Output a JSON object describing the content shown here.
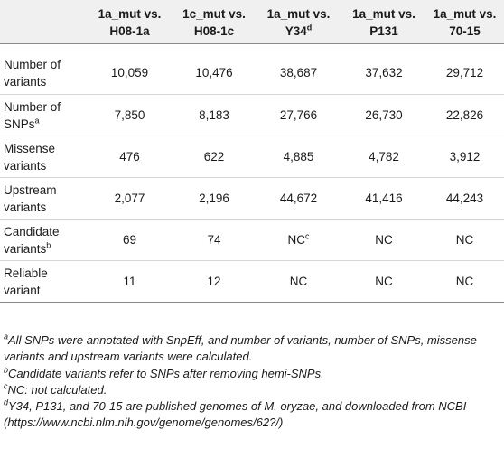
{
  "table": {
    "header": [
      {
        "line1": "",
        "line2": "",
        "sup": ""
      },
      {
        "line1": "1a_mut vs.",
        "line2": "H08-1a",
        "sup": ""
      },
      {
        "line1": "1c_mut vs.",
        "line2": "H08-1c",
        "sup": ""
      },
      {
        "line1": "1a_mut vs.",
        "line2": "Y34",
        "sup": "d"
      },
      {
        "line1": "1a_mut vs.",
        "line2": "P131",
        "sup": ""
      },
      {
        "line1": "1a_mut vs.",
        "line2": "70-15",
        "sup": ""
      }
    ],
    "rows": [
      {
        "label1": "Number of",
        "label2": "variants",
        "sup": "",
        "cells": [
          {
            "v": "10,059",
            "s": ""
          },
          {
            "v": "10,476",
            "s": ""
          },
          {
            "v": "38,687",
            "s": ""
          },
          {
            "v": "37,632",
            "s": ""
          },
          {
            "v": "29,712",
            "s": ""
          }
        ]
      },
      {
        "label1": "Number of",
        "label2": "SNPs",
        "sup": "a",
        "cells": [
          {
            "v": "7,850",
            "s": ""
          },
          {
            "v": "8,183",
            "s": ""
          },
          {
            "v": "27,766",
            "s": ""
          },
          {
            "v": "26,730",
            "s": ""
          },
          {
            "v": "22,826",
            "s": ""
          }
        ]
      },
      {
        "label1": "Missense",
        "label2": "variants",
        "sup": "",
        "cells": [
          {
            "v": "476",
            "s": ""
          },
          {
            "v": "622",
            "s": ""
          },
          {
            "v": "4,885",
            "s": ""
          },
          {
            "v": "4,782",
            "s": ""
          },
          {
            "v": "3,912",
            "s": ""
          }
        ]
      },
      {
        "label1": "Upstream",
        "label2": "variants",
        "sup": "",
        "cells": [
          {
            "v": "2,077",
            "s": ""
          },
          {
            "v": "2,196",
            "s": ""
          },
          {
            "v": "44,672",
            "s": ""
          },
          {
            "v": "41,416",
            "s": ""
          },
          {
            "v": "44,243",
            "s": ""
          }
        ]
      },
      {
        "label1": "Candidate",
        "label2": "variants",
        "sup": "b",
        "cells": [
          {
            "v": "69",
            "s": ""
          },
          {
            "v": "74",
            "s": ""
          },
          {
            "v": "NC",
            "s": "c"
          },
          {
            "v": "NC",
            "s": ""
          },
          {
            "v": "NC",
            "s": ""
          }
        ]
      },
      {
        "label1": "Reliable",
        "label2": "variant",
        "sup": "",
        "cells": [
          {
            "v": "11",
            "s": ""
          },
          {
            "v": "12",
            "s": ""
          },
          {
            "v": "NC",
            "s": ""
          },
          {
            "v": "NC",
            "s": ""
          },
          {
            "v": "NC",
            "s": ""
          }
        ]
      }
    ]
  },
  "footnotes": [
    {
      "mark": "a",
      "text": "All SNPs were annotated with SnpEff, and number of variants, number of SNPs, missense variants and upstream variants were calculated."
    },
    {
      "mark": "b",
      "text": "Candidate variants refer to SNPs after removing hemi-SNPs."
    },
    {
      "mark": "c",
      "text": "NC: not calculated."
    },
    {
      "mark": "d",
      "text": "Y34, P131, and 70-15 are published genomes of M. oryzae, and downloaded from NCBI (https://www.ncbi.nlm.nih.gov/genome/genomes/62?/)"
    }
  ]
}
